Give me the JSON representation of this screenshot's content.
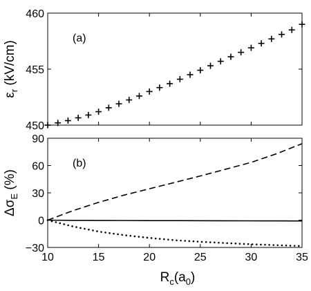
{
  "chart_data": [
    {
      "type": "scatter",
      "panel_label": "(a)",
      "ylabel": {
        "symbol": "ε",
        "subscript": "r",
        "unit": " (kV/cm)"
      },
      "xlim": [
        10,
        35
      ],
      "ylim": [
        450,
        460
      ],
      "yticks": [
        450,
        455,
        460
      ],
      "xticks": [
        10,
        15,
        20,
        25,
        30,
        35
      ],
      "show_xtick_labels": false,
      "marker": "+",
      "series": [
        {
          "x": [
            10,
            11,
            12,
            13,
            14,
            15,
            16,
            17,
            18,
            19,
            20,
            21,
            22,
            23,
            24,
            25,
            26,
            27,
            28,
            29,
            30,
            31,
            32,
            33,
            34,
            35
          ],
          "values": [
            450.0,
            450.2,
            450.4,
            450.65,
            450.9,
            451.2,
            451.55,
            451.9,
            452.25,
            452.6,
            453.0,
            453.35,
            453.7,
            454.1,
            454.5,
            454.9,
            455.3,
            455.7,
            456.1,
            456.5,
            456.9,
            457.3,
            457.7,
            458.1,
            458.5,
            459.0
          ]
        }
      ]
    },
    {
      "type": "line",
      "panel_label": "(b)",
      "ylabel": {
        "prefix": "Δσ",
        "subscript": "E",
        "unit": " (%)"
      },
      "xlabel": {
        "main": "R",
        "subscript": "c",
        "open": "(a",
        "sub2": "0",
        "close": ")"
      },
      "xlim": [
        10,
        35
      ],
      "ylim": [
        -30,
        90
      ],
      "yticks": [
        -30,
        0,
        30,
        60,
        90
      ],
      "ytick_labels": [
        "−30",
        "0",
        "30",
        "60",
        "90"
      ],
      "xticks": [
        10,
        15,
        20,
        25,
        30,
        35
      ],
      "x": [
        10,
        12.5,
        15,
        17.5,
        20,
        22.5,
        25,
        27.5,
        30,
        32.5,
        35
      ],
      "series": [
        {
          "style": "dashed",
          "values": [
            0,
            10.5,
            19.5,
            27.5,
            34.5,
            41.5,
            48.5,
            56,
            63.5,
            73,
            84
          ]
        },
        {
          "style": "solid",
          "values": [
            0,
            -0.2,
            -0.3,
            -0.4,
            -0.5,
            -0.55,
            -0.6,
            -0.7,
            -0.75,
            -0.8,
            -0.9
          ]
        },
        {
          "style": "dotted",
          "values": [
            0,
            -7,
            -12.5,
            -16.5,
            -19.5,
            -22,
            -23.8,
            -25.2,
            -26.5,
            -27.5,
            -28.5
          ]
        }
      ]
    }
  ]
}
